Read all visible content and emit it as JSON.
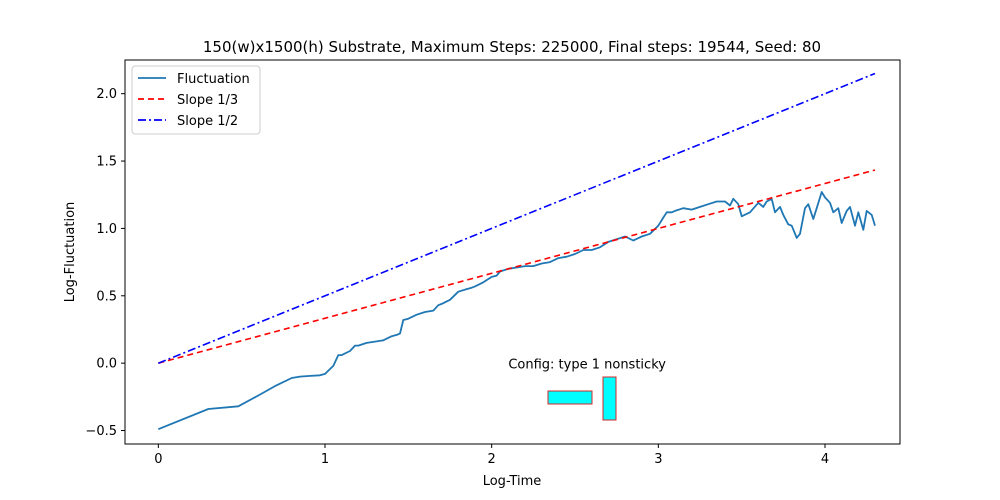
{
  "chart_data": {
    "type": "line",
    "title": "150(w)x1500(h) Substrate, Maximum Steps: 225000, Final steps: 19544, Seed: 80",
    "xlabel": "Log-Time",
    "ylabel": "Log-Fluctuation",
    "xlim": [
      -0.2,
      4.45
    ],
    "ylim": [
      -0.6,
      2.25
    ],
    "xticks": [
      0,
      1,
      2,
      3,
      4
    ],
    "xtick_labels": [
      "0",
      "1",
      "2",
      "3",
      "4"
    ],
    "yticks": [
      -0.5,
      0.0,
      0.5,
      1.0,
      1.5,
      2.0
    ],
    "ytick_labels": [
      "−0.5",
      "0.0",
      "0.5",
      "1.0",
      "1.5",
      "2.0"
    ],
    "grid": false,
    "legend_position": "top-left",
    "series": [
      {
        "name": "Fluctuation",
        "color": "#1f77b4",
        "style": "solid",
        "x": [
          0.0,
          0.3,
          0.48,
          0.6,
          0.7,
          0.8,
          0.85,
          0.9,
          0.97,
          1.0,
          1.05,
          1.08,
          1.1,
          1.15,
          1.18,
          1.2,
          1.25,
          1.3,
          1.35,
          1.4,
          1.43,
          1.45,
          1.47,
          1.5,
          1.55,
          1.6,
          1.65,
          1.68,
          1.7,
          1.75,
          1.8,
          1.85,
          1.88,
          1.9,
          1.95,
          2.0,
          2.03,
          2.05,
          2.1,
          2.15,
          2.2,
          2.25,
          2.3,
          2.35,
          2.4,
          2.45,
          2.5,
          2.55,
          2.6,
          2.65,
          2.7,
          2.75,
          2.8,
          2.85,
          2.9,
          2.95,
          3.0,
          3.03,
          3.05,
          3.08,
          3.1,
          3.15,
          3.2,
          3.25,
          3.3,
          3.35,
          3.4,
          3.43,
          3.45,
          3.48,
          3.5,
          3.55,
          3.6,
          3.63,
          3.65,
          3.68,
          3.7,
          3.73,
          3.75,
          3.78,
          3.8,
          3.83,
          3.85,
          3.88,
          3.9,
          3.93,
          3.95,
          3.98,
          4.0,
          4.03,
          4.05,
          4.08,
          4.1,
          4.13,
          4.15,
          4.18,
          4.2,
          4.23,
          4.25,
          4.28,
          4.3
        ],
        "y": [
          -0.49,
          -0.34,
          -0.32,
          -0.24,
          -0.17,
          -0.11,
          -0.1,
          -0.095,
          -0.09,
          -0.08,
          -0.02,
          0.06,
          0.06,
          0.09,
          0.13,
          0.13,
          0.15,
          0.16,
          0.17,
          0.2,
          0.21,
          0.22,
          0.32,
          0.33,
          0.36,
          0.38,
          0.39,
          0.43,
          0.44,
          0.47,
          0.53,
          0.55,
          0.56,
          0.57,
          0.6,
          0.64,
          0.65,
          0.68,
          0.7,
          0.71,
          0.72,
          0.72,
          0.74,
          0.75,
          0.78,
          0.79,
          0.81,
          0.84,
          0.84,
          0.86,
          0.9,
          0.92,
          0.94,
          0.91,
          0.94,
          0.96,
          1.02,
          1.08,
          1.12,
          1.12,
          1.13,
          1.15,
          1.14,
          1.16,
          1.18,
          1.2,
          1.2,
          1.17,
          1.22,
          1.18,
          1.09,
          1.12,
          1.19,
          1.16,
          1.2,
          1.22,
          1.12,
          1.16,
          1.1,
          1.03,
          1.02,
          0.93,
          0.96,
          1.15,
          1.18,
          1.07,
          1.15,
          1.27,
          1.23,
          1.19,
          1.12,
          1.15,
          1.04,
          1.13,
          1.16,
          1.02,
          1.12,
          0.99,
          1.13,
          1.1,
          1.02
        ]
      },
      {
        "name": "Slope 1/3",
        "color": "#ff0000",
        "style": "dashed",
        "x": [
          0.0,
          4.3
        ],
        "y": [
          0.0,
          1.4333
        ]
      },
      {
        "name": "Slope 1/2",
        "color": "#0000ff",
        "style": "dashdot",
        "x": [
          0.0,
          4.3
        ],
        "y": [
          0.0,
          2.15
        ]
      }
    ],
    "annotation": {
      "text": "Config:  type 1 nonsticky",
      "x": 2.1,
      "y": -0.04
    },
    "config_shapes": {
      "fill_color": "#00ffff",
      "edge_color": "#d62728"
    }
  }
}
